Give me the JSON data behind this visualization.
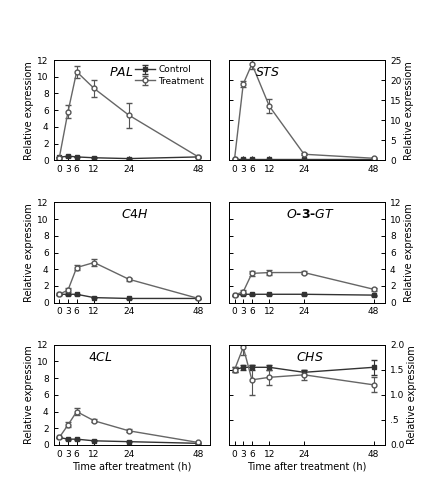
{
  "x": [
    0,
    3,
    6,
    12,
    24,
    48
  ],
  "PAL": {
    "control": [
      0.35,
      0.5,
      0.4,
      0.3,
      0.2,
      0.4
    ],
    "control_err": [
      0.05,
      0.05,
      0.05,
      0.05,
      0.05,
      0.05
    ],
    "treatment": [
      0.3,
      5.8,
      10.6,
      8.6,
      5.4,
      0.4
    ],
    "treatment_err": [
      0.1,
      0.8,
      0.7,
      1.0,
      1.5,
      0.1
    ],
    "ylim": [
      0,
      12
    ],
    "yticks": [
      0,
      2,
      4,
      6,
      8,
      10,
      12
    ],
    "yticklabels": [
      "0",
      "2",
      "4",
      "6",
      "8",
      "10",
      "12"
    ]
  },
  "STS": {
    "control": [
      0.2,
      0.2,
      0.2,
      0.2,
      0.2,
      0.2
    ],
    "control_err": [
      0.05,
      0.05,
      0.05,
      0.05,
      0.05,
      0.05
    ],
    "treatment": [
      0.3,
      19.0,
      24.0,
      13.5,
      1.5,
      0.5
    ],
    "treatment_err": [
      0.1,
      0.8,
      1.2,
      1.8,
      0.2,
      0.1
    ],
    "ylim": [
      0,
      25
    ],
    "yticks": [
      0,
      5,
      10,
      15,
      20,
      25
    ],
    "yticklabels": [
      "0",
      "5",
      "10",
      "15",
      "20",
      "25"
    ]
  },
  "C4H": {
    "control": [
      1.0,
      1.0,
      1.0,
      0.6,
      0.5,
      0.5
    ],
    "control_err": [
      0.05,
      0.05,
      0.05,
      0.05,
      0.05,
      0.05
    ],
    "treatment": [
      1.0,
      1.5,
      4.2,
      4.8,
      2.8,
      0.5
    ],
    "treatment_err": [
      0.1,
      0.2,
      0.35,
      0.4,
      0.2,
      0.05
    ],
    "ylim": [
      0,
      12
    ],
    "yticks": [
      0,
      2,
      4,
      6,
      8,
      10,
      12
    ],
    "yticklabels": [
      "0",
      "2",
      "4",
      "6",
      "8",
      "10",
      "12"
    ]
  },
  "O3GT": {
    "control": [
      0.9,
      1.0,
      1.0,
      1.0,
      1.0,
      0.9
    ],
    "control_err": [
      0.05,
      0.05,
      0.05,
      0.05,
      0.05,
      0.05
    ],
    "treatment": [
      0.9,
      1.3,
      3.5,
      3.6,
      3.6,
      1.6
    ],
    "treatment_err": [
      0.05,
      0.2,
      0.3,
      0.3,
      0.2,
      0.2
    ],
    "ylim": [
      0,
      12
    ],
    "yticks": [
      0,
      2,
      4,
      6,
      8,
      10,
      12
    ],
    "yticklabels": [
      "0",
      "2",
      "4",
      "6",
      "8",
      "10",
      "12"
    ]
  },
  "4CL": {
    "control": [
      0.9,
      0.7,
      0.7,
      0.5,
      0.4,
      0.2
    ],
    "control_err": [
      0.05,
      0.05,
      0.05,
      0.05,
      0.05,
      0.05
    ],
    "treatment": [
      0.9,
      2.4,
      4.0,
      2.9,
      1.7,
      0.3
    ],
    "treatment_err": [
      0.1,
      0.3,
      0.4,
      0.2,
      0.2,
      0.05
    ],
    "ylim": [
      0,
      12
    ],
    "yticks": [
      0,
      2,
      4,
      6,
      8,
      10,
      12
    ],
    "yticklabels": [
      "0",
      "2",
      "4",
      "6",
      "8",
      "10",
      "12"
    ]
  },
  "CHS": {
    "control": [
      1.5,
      1.55,
      1.55,
      1.55,
      1.45,
      1.55
    ],
    "control_err": [
      0.05,
      0.05,
      0.05,
      0.05,
      0.05,
      0.15
    ],
    "treatment": [
      1.5,
      1.95,
      1.3,
      1.35,
      1.4,
      1.2
    ],
    "treatment_err": [
      0.05,
      0.15,
      0.3,
      0.15,
      0.1,
      0.15
    ],
    "ylim": [
      0.0,
      2.0
    ],
    "yticks": [
      0.0,
      0.5,
      1.0,
      1.5,
      2.0
    ],
    "yticklabels": [
      "0.0",
      ".5",
      "1.0",
      "1.5",
      "2.0"
    ]
  },
  "xlabel": "Time after treatment (h)",
  "xlabel_right": "Time after treatment（h）",
  "ylabel": "Relative expressiom"
}
